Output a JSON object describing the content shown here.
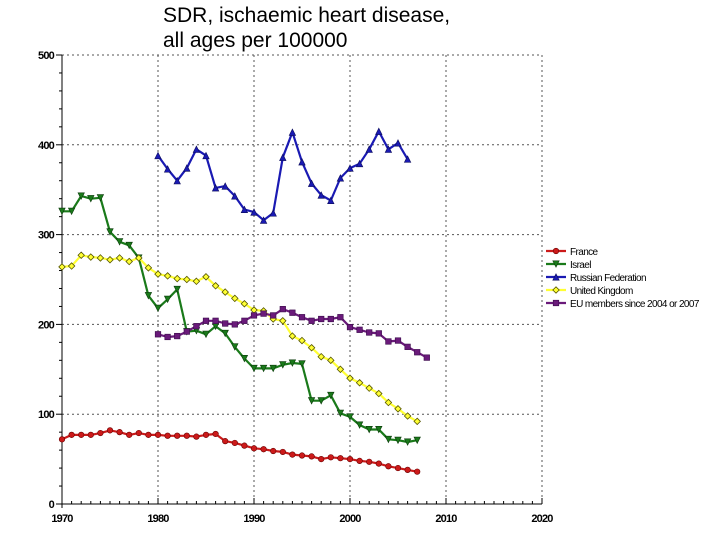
{
  "chart_data": {
    "type": "line",
    "title": "SDR, ischaemic heart disease, all ages per 100000",
    "title_lines": [
      "SDR, ischaemic heart disease,",
      "all ages per 100000"
    ],
    "xlabel": "",
    "ylabel": "",
    "xlim": [
      1970,
      2020
    ],
    "ylim": [
      0,
      500
    ],
    "x_ticks": [
      1970,
      1980,
      1990,
      2000,
      2010,
      2020
    ],
    "y_ticks": [
      0,
      100,
      200,
      300,
      400,
      500
    ],
    "x_minor_step": 1,
    "y_minor_step": 20,
    "grid": true,
    "grid_style": "dotted",
    "legend_position": "right",
    "series": [
      {
        "name": "France",
        "color": "#cc1a1a",
        "marker": "circle",
        "x": [
          1970,
          1971,
          1972,
          1973,
          1974,
          1975,
          1976,
          1977,
          1978,
          1979,
          1980,
          1981,
          1982,
          1983,
          1984,
          1985,
          1986,
          1987,
          1988,
          1989,
          1990,
          1991,
          1992,
          1993,
          1994,
          1995,
          1996,
          1997,
          1998,
          1999,
          2000,
          2001,
          2002,
          2003,
          2004,
          2005,
          2006,
          2007
        ],
        "values": [
          72,
          77,
          77,
          77,
          79,
          82,
          80,
          77,
          79,
          77,
          77,
          76,
          76,
          76,
          75,
          77,
          78,
          70,
          68,
          65,
          62,
          61,
          59,
          58,
          55,
          54,
          53,
          50,
          52,
          51,
          50,
          48,
          47,
          45,
          42,
          40,
          38,
          36
        ]
      },
      {
        "name": "Israel",
        "color": "#1a7a1a",
        "marker": "triangle-down",
        "x": [
          1970,
          1971,
          1972,
          1973,
          1974,
          1975,
          1976,
          1977,
          1978,
          1979,
          1980,
          1981,
          1982,
          1983,
          1984,
          1985,
          1986,
          1987,
          1988,
          1989,
          1990,
          1991,
          1992,
          1993,
          1994,
          1995,
          1996,
          1997,
          1998,
          1999,
          2000,
          2001,
          2002,
          2003,
          2004,
          2005,
          2006,
          2007
        ],
        "values": [
          326,
          326,
          343,
          340,
          341,
          303,
          292,
          288,
          274,
          232,
          218,
          228,
          239,
          192,
          193,
          189,
          198,
          190,
          175,
          162,
          151,
          151,
          151,
          155,
          157,
          156,
          115,
          115,
          121,
          101,
          97,
          88,
          83,
          83,
          72,
          71,
          69,
          71
        ]
      },
      {
        "name": "Russian Federation",
        "color": "#1a1ab3",
        "marker": "triangle-up",
        "x": [
          1980,
          1981,
          1982,
          1983,
          1984,
          1985,
          1986,
          1987,
          1988,
          1989,
          1990,
          1991,
          1992,
          1993,
          1994,
          1995,
          1996,
          1997,
          1998,
          1999,
          2000,
          2001,
          2002,
          2003,
          2004,
          2005,
          2006
        ],
        "values": [
          388,
          373,
          360,
          374,
          395,
          388,
          352,
          354,
          343,
          328,
          325,
          316,
          324,
          386,
          414,
          381,
          357,
          344,
          338,
          363,
          374,
          379,
          395,
          415,
          395,
          402,
          384
        ]
      },
      {
        "name": "United Kingdom",
        "color": "#ffff33",
        "marker": "diamond",
        "x": [
          1970,
          1971,
          1972,
          1973,
          1974,
          1975,
          1976,
          1977,
          1978,
          1979,
          1980,
          1981,
          1982,
          1983,
          1984,
          1985,
          1986,
          1987,
          1988,
          1989,
          1990,
          1991,
          1992,
          1993,
          1994,
          1995,
          1996,
          1997,
          1998,
          1999,
          2000,
          2001,
          2002,
          2003,
          2004,
          2005,
          2006,
          2007
        ],
        "values": [
          264,
          265,
          277,
          275,
          274,
          272,
          274,
          270,
          274,
          263,
          256,
          254,
          251,
          250,
          248,
          253,
          243,
          236,
          229,
          223,
          216,
          215,
          206,
          204,
          187,
          182,
          174,
          164,
          160,
          150,
          140,
          135,
          129,
          123,
          113,
          106,
          98,
          92
        ]
      },
      {
        "name": "EU members since 2004 or 2007",
        "color": "#6a1a7a",
        "marker": "square",
        "x": [
          1980,
          1981,
          1982,
          1983,
          1984,
          1985,
          1986,
          1987,
          1988,
          1989,
          1990,
          1991,
          1992,
          1993,
          1994,
          1995,
          1996,
          1997,
          1998,
          1999,
          2000,
          2001,
          2002,
          2003,
          2004,
          2005,
          2006,
          2007,
          2008
        ],
        "values": [
          189,
          186,
          187,
          192,
          198,
          204,
          204,
          201,
          200,
          204,
          210,
          212,
          210,
          217,
          213,
          208,
          204,
          206,
          206,
          208,
          197,
          194,
          191,
          190,
          181,
          182,
          175,
          169,
          163
        ]
      }
    ]
  }
}
